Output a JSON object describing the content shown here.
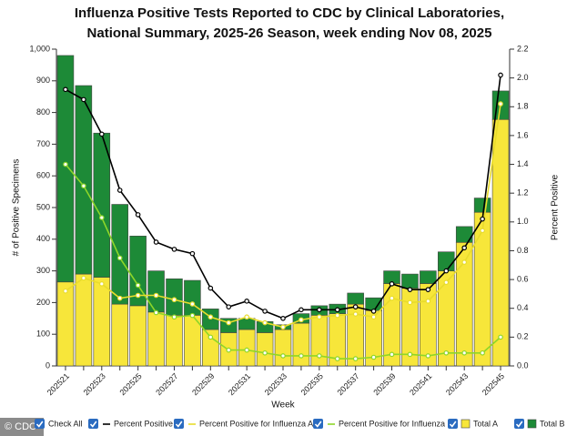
{
  "chart_data": {
    "type": "bar",
    "title": [
      "Influenza Positive Tests Reported to CDC by Clinical Laboratories,",
      "National Summary, 2025-26 Season, week ending Nov 08, 2025"
    ],
    "x_label": "Week",
    "y_label": "# of Positive Specimens",
    "y2_label": "Percent Positive",
    "check_all_label": "Check All",
    "source": "© CDC",
    "stacked": true,
    "categories": [
      "202521",
      null,
      "202523",
      null,
      "202525",
      null,
      "202527",
      null,
      "202529",
      null,
      "202531",
      null,
      "202533",
      null,
      "202535",
      null,
      "202537",
      null,
      "202539",
      null,
      "202541",
      null,
      "202543",
      null,
      "202545"
    ],
    "ylim": [
      0,
      1000
    ],
    "yticks": [
      0,
      100,
      200,
      300,
      400,
      500,
      600,
      700,
      800,
      900,
      {
        "value": 1000,
        "label": "1,000"
      }
    ],
    "y2lim": [
      0,
      2.2
    ],
    "y2ticks": [
      {
        "value": 0,
        "label": "0.0"
      },
      0.2,
      0.4,
      0.6,
      0.8,
      {
        "value": 1,
        "label": "1.0"
      },
      1.2,
      1.4,
      1.6,
      1.8,
      {
        "value": 2,
        "label": "2.0"
      },
      2.2
    ],
    "series": [
      {
        "name": "Percent Positive",
        "type": "line",
        "axis": "y2",
        "color": "#000000",
        "values": [
          1.92,
          1.85,
          1.61,
          1.22,
          1.05,
          0.86,
          0.81,
          0.78,
          0.54,
          0.41,
          0.45,
          0.38,
          0.33,
          0.39,
          0.39,
          0.39,
          0.41,
          0.38,
          0.57,
          0.53,
          0.53,
          0.66,
          0.82,
          1.02,
          2.02
        ]
      },
      {
        "name": "Percent Positive for Influenza A",
        "type": "line",
        "axis": "y2",
        "color": "#e8dc2c",
        "values": [
          0.52,
          0.61,
          0.57,
          0.47,
          0.49,
          0.49,
          0.46,
          0.43,
          0.34,
          0.3,
          0.34,
          0.3,
          0.27,
          0.32,
          0.34,
          0.35,
          0.36,
          0.34,
          0.47,
          0.44,
          0.45,
          0.58,
          0.72,
          0.94,
          1.82
        ]
      },
      {
        "name": "Percent Positive for Influenza B",
        "type": "line",
        "axis": "y2",
        "color": "#8ed629",
        "values": [
          1.4,
          1.25,
          1.03,
          0.75,
          0.56,
          0.37,
          0.34,
          0.35,
          0.2,
          0.11,
          0.11,
          0.09,
          0.07,
          0.07,
          0.07,
          0.05,
          0.05,
          0.06,
          0.08,
          0.08,
          0.07,
          0.09,
          0.09,
          0.09,
          0.2
        ]
      },
      {
        "name": "Total A",
        "type": "bar",
        "color": "#f7e63a",
        "values": [
          265,
          290,
          280,
          195,
          190,
          170,
          160,
          160,
          115,
          105,
          115,
          105,
          115,
          135,
          160,
          165,
          195,
          175,
          260,
          245,
          260,
          300,
          390,
          485,
          778
        ]
      },
      {
        "name": "Total B",
        "type": "bar",
        "color": "#1d8a37",
        "values": [
          715,
          595,
          455,
          315,
          220,
          130,
          115,
          110,
          65,
          45,
          35,
          35,
          15,
          30,
          30,
          30,
          35,
          40,
          40,
          45,
          40,
          60,
          50,
          45,
          90
        ]
      }
    ]
  }
}
